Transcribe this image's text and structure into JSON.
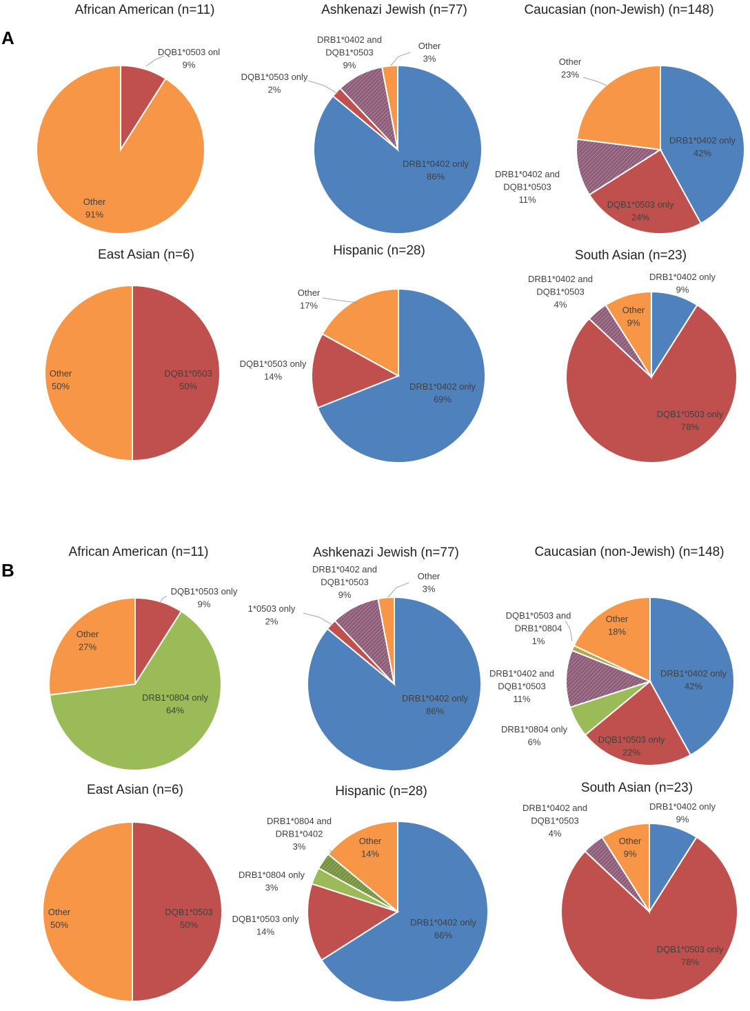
{
  "panels": [
    {
      "letter": "A",
      "charts": [
        {
          "type": "pie",
          "title": "African American (n=11)",
          "slices": [
            {
              "name": "DQB1*0503 onl",
              "value": 9,
              "label": "9%",
              "color": "#C0504D",
              "pattern": "solid"
            },
            {
              "name": "Other",
              "value": 91,
              "label": "91%",
              "color": "#F79646",
              "pattern": "solid"
            }
          ]
        },
        {
          "type": "pie",
          "title": "Ashkenazi Jewish (n=77)",
          "slices": [
            {
              "name": "DRB1*0402 only",
              "value": 86,
              "label": "86%",
              "color": "#4F81BD",
              "pattern": "solid"
            },
            {
              "name": "DQB1*0503 only",
              "value": 2,
              "label": "2%",
              "color": "#C0504D",
              "pattern": "solid"
            },
            {
              "name": "DRB1*0402 and DQB1*0503",
              "value": 9,
              "label": "9%",
              "color": "#8E5C78",
              "pattern": "striped"
            },
            {
              "name": "Other",
              "value": 3,
              "label": "3%",
              "color": "#F79646",
              "pattern": "solid"
            }
          ]
        },
        {
          "type": "pie",
          "title": "Caucasian (non-Jewish) (n=148)",
          "slices": [
            {
              "name": "DRB1*0402 only",
              "value": 42,
              "label": "42%",
              "color": "#4F81BD",
              "pattern": "solid"
            },
            {
              "name": "DQB1*0503 only",
              "value": 24,
              "label": "24%",
              "color": "#C0504D",
              "pattern": "solid"
            },
            {
              "name": "DRB1*0402 and DQB1*0503",
              "value": 11,
              "label": "11%",
              "color": "#8E5C78",
              "pattern": "striped"
            },
            {
              "name": "Other",
              "value": 23,
              "label": "23%",
              "color": "#F79646",
              "pattern": "solid"
            }
          ]
        },
        {
          "type": "pie",
          "title": "East Asian (n=6)",
          "slices": [
            {
              "name": "DQB1*0503",
              "value": 50,
              "label": "50%",
              "color": "#C0504D",
              "pattern": "solid"
            },
            {
              "name": "Other",
              "value": 50,
              "label": "50%",
              "color": "#F79646",
              "pattern": "solid"
            }
          ]
        },
        {
          "type": "pie",
          "title": "Hispanic (n=28)",
          "slices": [
            {
              "name": "DRB1*0402 only",
              "value": 69,
              "label": "69%",
              "color": "#4F81BD",
              "pattern": "solid"
            },
            {
              "name": "DQB1*0503 only",
              "value": 14,
              "label": "14%",
              "color": "#C0504D",
              "pattern": "solid"
            },
            {
              "name": "Other",
              "value": 17,
              "label": "17%",
              "color": "#F79646",
              "pattern": "solid"
            }
          ]
        },
        {
          "type": "pie",
          "title": "South Asian (n=23)",
          "slices": [
            {
              "name": "DRB1*0402 only",
              "value": 9,
              "label": "9%",
              "color": "#4F81BD",
              "pattern": "solid"
            },
            {
              "name": "DQB1*0503 only",
              "value": 78,
              "label": "78%",
              "color": "#C0504D",
              "pattern": "solid"
            },
            {
              "name": "DRB1*0402 and DQB1*0503",
              "value": 4,
              "label": "4%",
              "color": "#8E5C78",
              "pattern": "striped"
            },
            {
              "name": "Other",
              "value": 9,
              "label": "9%",
              "color": "#F79646",
              "pattern": "solid"
            }
          ]
        }
      ]
    },
    {
      "letter": "B",
      "charts": [
        {
          "type": "pie",
          "title": "African American (n=11)",
          "slices": [
            {
              "name": "DQB1*0503 only",
              "value": 9,
              "label": "9%",
              "color": "#C0504D",
              "pattern": "solid"
            },
            {
              "name": "DRB1*0804 only",
              "value": 64,
              "label": "64%",
              "color": "#9BBB59",
              "pattern": "solid"
            },
            {
              "name": "Other",
              "value": 27,
              "label": "27%",
              "color": "#F79646",
              "pattern": "solid"
            }
          ]
        },
        {
          "type": "pie",
          "title": "Ashkenazi Jewish (n=77)",
          "slices": [
            {
              "name": "DRB1*0402 only",
              "value": 86,
              "label": "86%",
              "color": "#4F81BD",
              "pattern": "solid"
            },
            {
              "name": "1*0503 only",
              "value": 2,
              "label": "2%",
              "color": "#C0504D",
              "pattern": "solid"
            },
            {
              "name": "DRB1*0402 and DQB1*0503",
              "value": 9,
              "label": "9%",
              "color": "#8E5C78",
              "pattern": "striped"
            },
            {
              "name": "Other",
              "value": 3,
              "label": "3%",
              "color": "#F79646",
              "pattern": "solid"
            }
          ]
        },
        {
          "type": "pie",
          "title": "Caucasian (non-Jewish) (n=148)",
          "slices": [
            {
              "name": "DRB1*0402 only",
              "value": 42,
              "label": "42%",
              "color": "#4F81BD",
              "pattern": "solid"
            },
            {
              "name": "DQB1*0503 only",
              "value": 22,
              "label": "22%",
              "color": "#C0504D",
              "pattern": "solid"
            },
            {
              "name": "DRB1*0804 only",
              "value": 6,
              "label": "6%",
              "color": "#9BBB59",
              "pattern": "solid"
            },
            {
              "name": "DRB1*0402 and DQB1*0503",
              "value": 11,
              "label": "11%",
              "color": "#8E5C78",
              "pattern": "striped"
            },
            {
              "name": "DQB1*0503 and DRB1*0804",
              "value": 1,
              "label": "1%",
              "color": "#B0A040",
              "pattern": "striped"
            },
            {
              "name": "Other",
              "value": 18,
              "label": "18%",
              "color": "#F79646",
              "pattern": "solid"
            }
          ]
        },
        {
          "type": "pie",
          "title": "East Asian (n=6)",
          "slices": [
            {
              "name": "DQB1*0503",
              "value": 50,
              "label": "50%",
              "color": "#C0504D",
              "pattern": "solid"
            },
            {
              "name": "Other",
              "value": 50,
              "label": "50%",
              "color": "#F79646",
              "pattern": "solid"
            }
          ]
        },
        {
          "type": "pie",
          "title": "Hispanic (n=28)",
          "slices": [
            {
              "name": "DRB1*0402 only",
              "value": 66,
              "label": "66%",
              "color": "#4F81BD",
              "pattern": "solid"
            },
            {
              "name": "DQB1*0503 only",
              "value": 14,
              "label": "14%",
              "color": "#C0504D",
              "pattern": "solid"
            },
            {
              "name": "DRB1*0804 only",
              "value": 3,
              "label": "3%",
              "color": "#9BBB59",
              "pattern": "solid"
            },
            {
              "name": "DRB1*0804 and DRB1*0402",
              "value": 3,
              "label": "3%",
              "color": "#76923C",
              "pattern": "striped"
            },
            {
              "name": "Other",
              "value": 14,
              "label": "14%",
              "color": "#F79646",
              "pattern": "solid"
            }
          ]
        },
        {
          "type": "pie",
          "title": "South Asian (n=23)",
          "slices": [
            {
              "name": "DRB1*0402 only",
              "value": 9,
              "label": "9%",
              "color": "#4F81BD",
              "pattern": "solid"
            },
            {
              "name": "DQB1*0503 only",
              "value": 78,
              "label": "78%",
              "color": "#C0504D",
              "pattern": "solid"
            },
            {
              "name": "DRB1*0402 and DQB1*0503",
              "value": 4,
              "label": "4%",
              "color": "#8E5C78",
              "pattern": "striped"
            },
            {
              "name": "Other",
              "value": 9,
              "label": "9%",
              "color": "#F79646",
              "pattern": "solid"
            }
          ]
        }
      ]
    }
  ]
}
